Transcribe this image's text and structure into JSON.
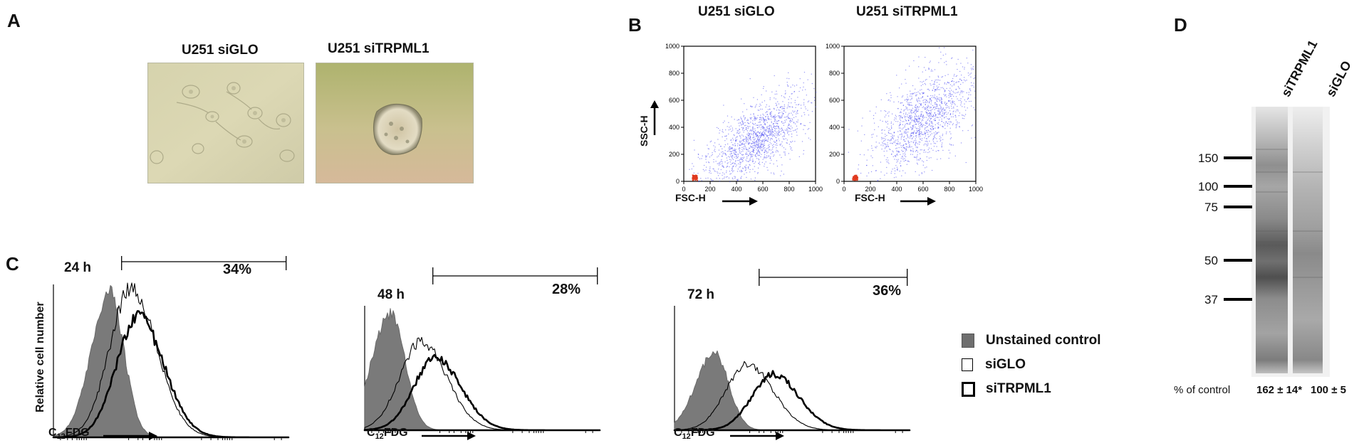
{
  "panels": {
    "a": {
      "letter": "A",
      "left_label": "U251 siGLO",
      "right_label": "U251 siTRPML1"
    },
    "b": {
      "letter": "B",
      "left_label": "U251 siGLO",
      "right_label": "U251 siTRPML1",
      "y_axis_label": "SSC-H",
      "x_axis_label": "FSC-H",
      "ticks": [
        "0",
        "200",
        "400",
        "600",
        "800",
        "1000"
      ]
    },
    "c": {
      "letter": "C",
      "y_axis_label": "Relative cell number",
      "x_axis_label_main": "C",
      "x_axis_label_sub": "12",
      "x_axis_label_tail": "FDG",
      "plots": [
        {
          "time": "24 h",
          "percent": "34%"
        },
        {
          "time": "48 h",
          "percent": "28%"
        },
        {
          "time": "72 h",
          "percent": "36%"
        }
      ],
      "legend": [
        {
          "label": "Unstained control",
          "swatch": "#6e6e6e"
        },
        {
          "label": "siGLO",
          "swatch": "#ffffff"
        },
        {
          "label": "siTRPML1",
          "swatch": "#ffffff"
        }
      ]
    },
    "d": {
      "letter": "D",
      "lanes": [
        "siTRPML1",
        "siGLO"
      ],
      "markers": [
        "150",
        "100",
        "75",
        "50",
        "37"
      ],
      "footer_label": "% of control",
      "quant": [
        "162 ± 14*",
        "100 ± 5"
      ]
    }
  },
  "chart_data": [
    {
      "type": "histogram",
      "title": "24 h",
      "xlabel": "C12FDG",
      "ylabel": "Relative cell number",
      "series": [
        {
          "name": "Unstained control",
          "peak_x_fraction": 0.24,
          "peak_height": 0.94
        },
        {
          "name": "siGLO",
          "peak_x_fraction": 0.33,
          "peak_height": 0.97
        },
        {
          "name": "siTRPML1",
          "peak_x_fraction": 0.36,
          "peak_height": 0.79
        }
      ],
      "gate_percent": 34
    },
    {
      "type": "histogram",
      "title": "48 h",
      "xlabel": "C12FDG",
      "ylabel": "Relative cell number",
      "series": [
        {
          "name": "Unstained control",
          "peak_x_fraction": 0.11,
          "peak_height": 0.94
        },
        {
          "name": "siGLO",
          "peak_x_fraction": 0.24,
          "peak_height": 0.71
        },
        {
          "name": "siTRPML1",
          "peak_x_fraction": 0.3,
          "peak_height": 0.58
        }
      ],
      "gate_percent": 28
    },
    {
      "type": "histogram",
      "title": "72 h",
      "xlabel": "C12FDG",
      "ylabel": "Relative cell number",
      "series": [
        {
          "name": "Unstained control",
          "peak_x_fraction": 0.17,
          "peak_height": 0.62
        },
        {
          "name": "siGLO",
          "peak_x_fraction": 0.31,
          "peak_height": 0.53
        },
        {
          "name": "siTRPML1",
          "peak_x_fraction": 0.42,
          "peak_height": 0.45
        }
      ],
      "gate_percent": 36
    },
    {
      "type": "scatter",
      "title": "U251 siGLO",
      "xlabel": "FSC-H",
      "ylabel": "SSC-H",
      "xlim": [
        0,
        1000
      ],
      "ylim": [
        0,
        1000
      ],
      "cloud_center": [
        550,
        320
      ],
      "cloud_spread": [
        190,
        160
      ]
    },
    {
      "type": "scatter",
      "title": "U251 siTRPML1",
      "xlabel": "FSC-H",
      "ylabel": "SSC-H",
      "xlim": [
        0,
        1000
      ],
      "ylim": [
        0,
        1000
      ],
      "cloud_center": [
        600,
        470
      ],
      "cloud_spread": [
        200,
        200
      ]
    }
  ]
}
